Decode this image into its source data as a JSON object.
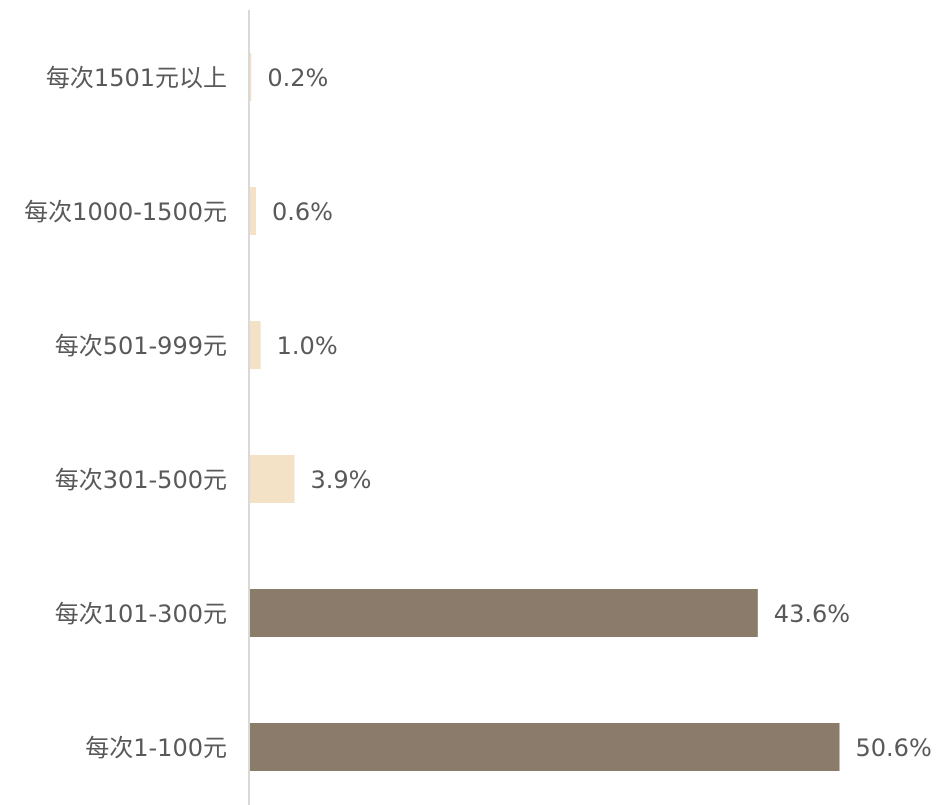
{
  "colors": {
    "bar_light": "#F4E2C6",
    "bar_dark": "#8A7B6A",
    "axis": "#D9D9D9",
    "text": "#595959"
  },
  "chart_data": {
    "type": "bar",
    "orientation": "horizontal",
    "title": "",
    "xlabel": "",
    "ylabel": "",
    "grid": false,
    "legend": "none",
    "xlim": [
      0,
      55
    ],
    "categories": [
      "每次1501元以上",
      "每次1000-1500元",
      "每次501-999元",
      "每次301-500元",
      "每次101-300元",
      "每次1-100元"
    ],
    "values": [
      0.2,
      0.6,
      1.0,
      3.9,
      43.6,
      50.6
    ],
    "value_labels": [
      "0.2%",
      "0.6%",
      "1.0%",
      "3.9%",
      "43.6%",
      "50.6%"
    ],
    "bar_color_keys": [
      "bar_light",
      "bar_light",
      "bar_light",
      "bar_light",
      "bar_dark",
      "bar_dark"
    ]
  }
}
